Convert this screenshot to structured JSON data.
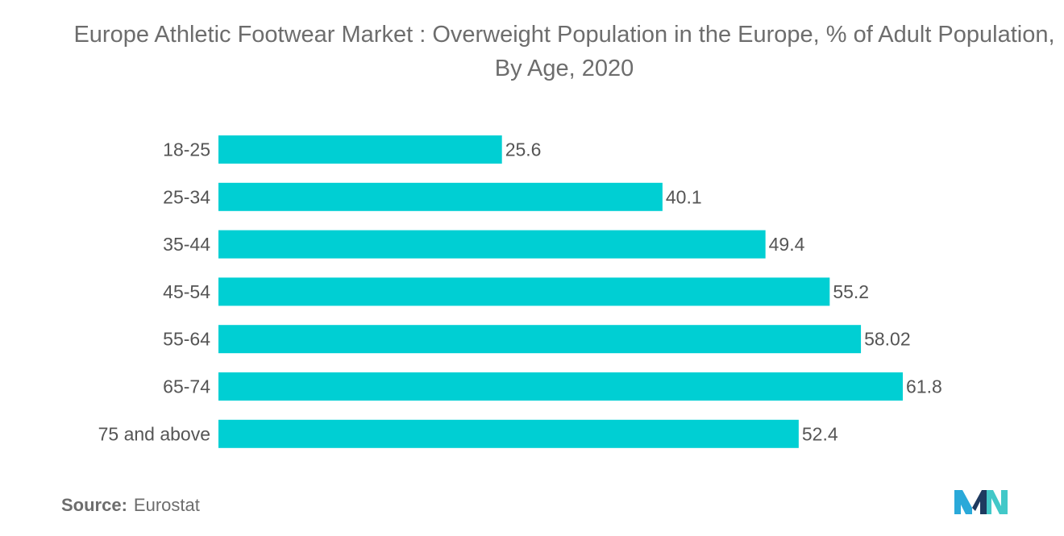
{
  "header": {
    "title": "Europe Athletic Footwear Market : Overweight Population in the Europe, % of Adult Population, By Age, 2020"
  },
  "source": {
    "label": "Source:",
    "value": "Eurostat"
  },
  "logo": {
    "icon": "mordor-intelligence-logo-icon",
    "colors": [
      "#2aa9d9",
      "#1e3a5f",
      "#42c8c8"
    ]
  },
  "colors": {
    "bar": "#00cfd3",
    "text": "#6d6d6d",
    "label": "#555555"
  },
  "chart_data": {
    "type": "bar",
    "orientation": "horizontal",
    "title": "Europe Athletic Footwear Market : Overweight Population in the Europe, % of Adult Population, By Age, 2020",
    "categories": [
      "18-25",
      "25-34",
      "35-44",
      "45-54",
      "55-64",
      "65-74",
      "75 and above"
    ],
    "values": [
      25.6,
      40.1,
      49.4,
      55.2,
      58.02,
      61.8,
      52.4
    ],
    "value_labels": [
      "25.6",
      "40.1",
      "49.4",
      "55.2",
      "58.02",
      "61.8",
      "52.4"
    ],
    "xlabel": "",
    "ylabel": "",
    "xlim": [
      0,
      61.8
    ],
    "grid": false,
    "legend": "none"
  }
}
